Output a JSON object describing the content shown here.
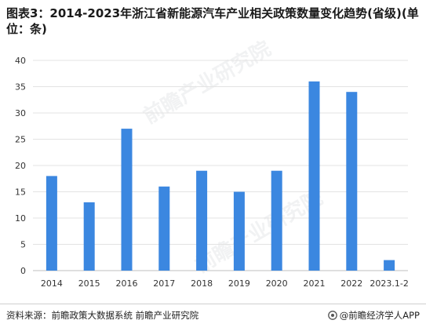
{
  "title": "图表3：2014-2023年浙江省新能源汽车产业相关政策数量变化趋势(省级)(单位：条)",
  "watermark_text": "前瞻产业研究院",
  "source_text": "资料来源：前瞻政策大数据系统 前瞻产业研究院",
  "brand_text": "@前瞻经济学人APP",
  "bar_color": "#3b87e0",
  "chart_data": {
    "type": "bar",
    "title": "",
    "xlabel": "",
    "ylabel": "",
    "categories": [
      "2014",
      "2015",
      "2016",
      "2017",
      "2018",
      "2019",
      "2020",
      "2021",
      "2022",
      "2023.1-2"
    ],
    "values": [
      18,
      13,
      27,
      16,
      19,
      15,
      19,
      36,
      34,
      2
    ],
    "ylim": [
      0,
      40
    ],
    "yticks": [
      0,
      5,
      10,
      15,
      20,
      25,
      30,
      35,
      40
    ],
    "grid": true,
    "legend": "none"
  }
}
